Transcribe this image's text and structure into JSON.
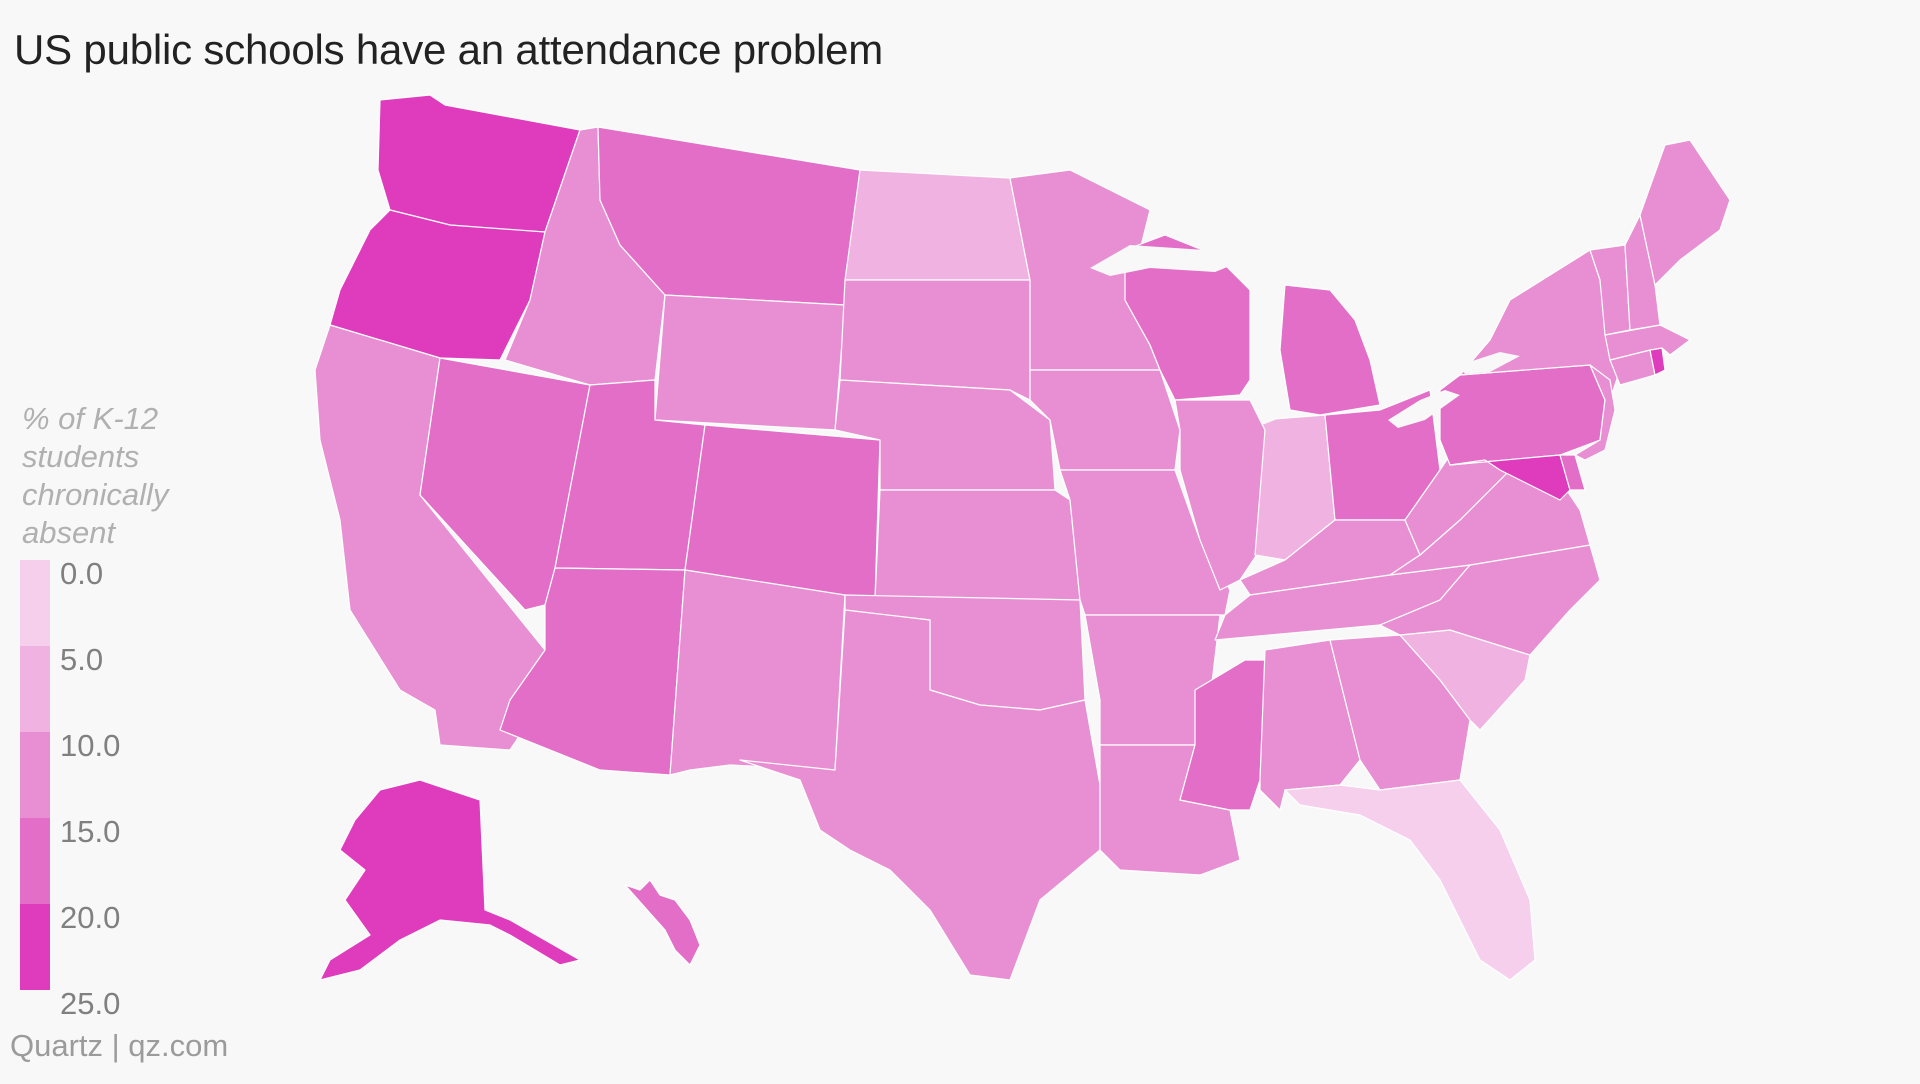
{
  "title": "US public schools have an attendance problem",
  "footer": "Quartz | qz.com",
  "legend": {
    "title": "% of K-12\nstudents\nchronically\nabsent",
    "ticks": [
      "0.0",
      "5.0",
      "10.0",
      "15.0",
      "20.0",
      "25.0"
    ],
    "colors": [
      "#f5cfec",
      "#f0b3e1",
      "#e88fd3",
      "#e26ec8",
      "#df3cbd"
    ]
  },
  "chart_data": {
    "type": "choropleth",
    "title": "US public schools have an attendance problem",
    "legend_title": "% of K-12 students chronically absent",
    "scale_range": [
      0,
      25
    ],
    "bins": [
      0,
      5,
      10,
      15,
      20,
      25
    ],
    "states": [
      {
        "name": "Washington",
        "bin": "20.0-25.0"
      },
      {
        "name": "Oregon",
        "bin": "20.0-25.0"
      },
      {
        "name": "Alaska",
        "bin": "20.0-25.0"
      },
      {
        "name": "California",
        "bin": "10.0-15.0"
      },
      {
        "name": "Nevada",
        "bin": "15.0-20.0"
      },
      {
        "name": "Idaho",
        "bin": "10.0-15.0"
      },
      {
        "name": "Montana",
        "bin": "15.0-20.0"
      },
      {
        "name": "Wyoming",
        "bin": "10.0-15.0"
      },
      {
        "name": "Utah",
        "bin": "15.0-20.0"
      },
      {
        "name": "Arizona",
        "bin": "15.0-20.0"
      },
      {
        "name": "Colorado",
        "bin": "15.0-20.0"
      },
      {
        "name": "New Mexico",
        "bin": "10.0-15.0"
      },
      {
        "name": "North Dakota",
        "bin": "5.0-10.0"
      },
      {
        "name": "South Dakota",
        "bin": "10.0-15.0"
      },
      {
        "name": "Nebraska",
        "bin": "10.0-15.0"
      },
      {
        "name": "Kansas",
        "bin": "10.0-15.0"
      },
      {
        "name": "Oklahoma",
        "bin": "10.0-15.0"
      },
      {
        "name": "Texas",
        "bin": "10.0-15.0"
      },
      {
        "name": "Minnesota",
        "bin": "10.0-15.0"
      },
      {
        "name": "Iowa",
        "bin": "10.0-15.0"
      },
      {
        "name": "Missouri",
        "bin": "10.0-15.0"
      },
      {
        "name": "Arkansas",
        "bin": "10.0-15.0"
      },
      {
        "name": "Louisiana",
        "bin": "10.0-15.0"
      },
      {
        "name": "Wisconsin",
        "bin": "15.0-20.0"
      },
      {
        "name": "Illinois",
        "bin": "10.0-15.0"
      },
      {
        "name": "Michigan",
        "bin": "15.0-20.0"
      },
      {
        "name": "Indiana",
        "bin": "5.0-10.0"
      },
      {
        "name": "Ohio",
        "bin": "15.0-20.0"
      },
      {
        "name": "Kentucky",
        "bin": "10.0-15.0"
      },
      {
        "name": "Tennessee",
        "bin": "10.0-15.0"
      },
      {
        "name": "Mississippi",
        "bin": "15.0-20.0"
      },
      {
        "name": "Alabama",
        "bin": "10.0-15.0"
      },
      {
        "name": "Georgia",
        "bin": "10.0-15.0"
      },
      {
        "name": "Florida",
        "bin": "0.0-5.0"
      },
      {
        "name": "South Carolina",
        "bin": "5.0-10.0"
      },
      {
        "name": "North Carolina",
        "bin": "10.0-15.0"
      },
      {
        "name": "Virginia",
        "bin": "10.0-15.0"
      },
      {
        "name": "West Virginia",
        "bin": "10.0-15.0"
      },
      {
        "name": "Pennsylvania",
        "bin": "15.0-20.0"
      },
      {
        "name": "New York",
        "bin": "10.0-15.0"
      },
      {
        "name": "Maryland",
        "bin": "20.0-25.0"
      },
      {
        "name": "Delaware",
        "bin": "15.0-20.0"
      },
      {
        "name": "New Jersey",
        "bin": "10.0-15.0"
      },
      {
        "name": "Connecticut",
        "bin": "10.0-15.0"
      },
      {
        "name": "Rhode Island",
        "bin": "20.0-25.0"
      },
      {
        "name": "Massachusetts",
        "bin": "10.0-15.0"
      },
      {
        "name": "Vermont",
        "bin": "10.0-15.0"
      },
      {
        "name": "New Hampshire",
        "bin": "10.0-15.0"
      },
      {
        "name": "Maine",
        "bin": "10.0-15.0"
      },
      {
        "name": "Hawaii",
        "bin": "15.0-20.0"
      }
    ]
  }
}
